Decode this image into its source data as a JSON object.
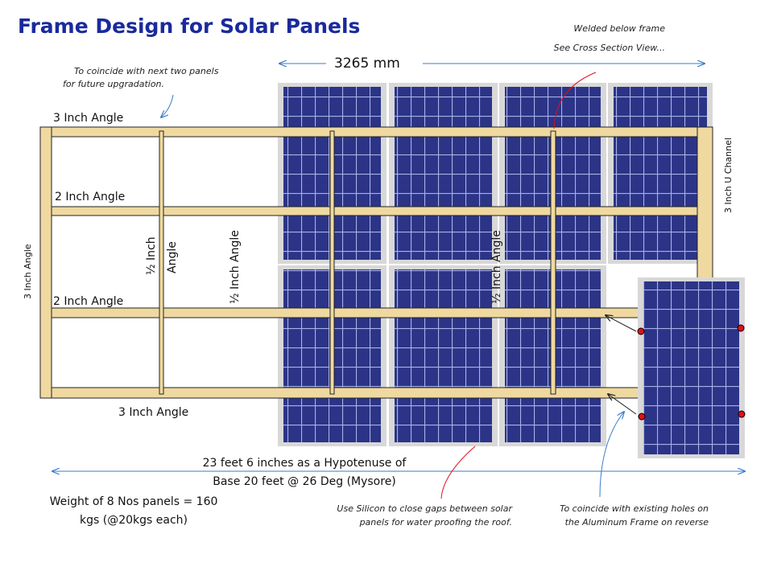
{
  "title": "Frame Design for Solar Panels",
  "colors": {
    "title": "#1a2a9c",
    "panel": "#2b3486",
    "frame": "#efd9a0",
    "red": "#e0101a",
    "blue_arrow": "#3a7bc8"
  },
  "dimension_width": "3265 mm",
  "labels": {
    "top_angle": "3 Inch Angle",
    "mid_angle_1": "2 Inch Angle",
    "mid_angle_2": "2 Inch Angle",
    "bottom_angle": "3 Inch Angle",
    "left_angle": "3 Inch Angle",
    "right_channel": "3 Inch U Channel",
    "half_inch_1a": "½  Inch",
    "half_inch_1b": "Angle",
    "half_inch_2": "½  Inch Angle",
    "half_inch_3": "½  Inch Angle"
  },
  "notes": {
    "future_1": "To coincide with next two panels",
    "future_2": "for future upgradation.",
    "welded_1": "Welded below frame",
    "welded_2": "See Cross Section View...",
    "silicon_1": "Use Silicon to close gaps between solar",
    "silicon_2": "panels for water proofing the roof.",
    "holes_1": "To coincide with existing holes on",
    "holes_2": "the Aluminum Frame on reverse"
  },
  "hypotenuse_1": "23 feet 6 inches as a Hypotenuse of",
  "hypotenuse_2": "Base 20 feet @ 26 Deg (Mysore)",
  "weight_1": "Weight of 8 Nos panels = 160",
  "weight_2": "kgs (@20kgs each)"
}
